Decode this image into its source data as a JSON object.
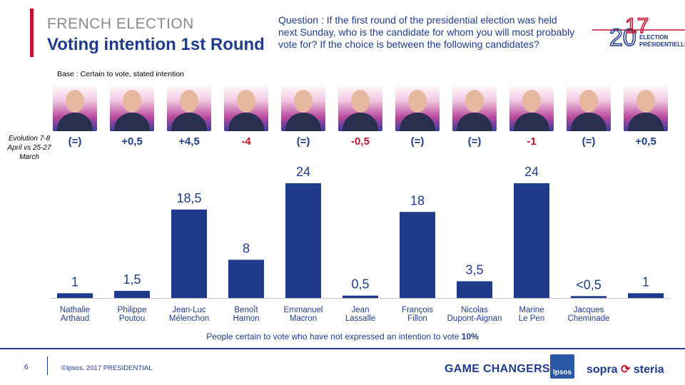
{
  "header": {
    "sup_title": "FRENCH ELECTION",
    "title": "Voting intention 1st Round",
    "question": "Question : If the first round of the presidential election was held next Sunday, who is the candidate for whom you will most probably vote for? If the choice is between the following candidates?",
    "base": "Base : Certain to vote, stated intention"
  },
  "logo": {
    "year_part1": "20",
    "year_part2": "17",
    "line1": "ELECTION",
    "line2": "PRÉSIDENTIELLE"
  },
  "evolution_label": "Evolution 7-8 April vs 25-27 March",
  "colors": {
    "bar": "#1f3c8c",
    "positive": "#1f3c8c",
    "negative": "#c8102e",
    "neutral": "#1f3c8c",
    "accent_red": "#c8102e"
  },
  "chart_data": {
    "type": "bar",
    "title": "Voting intention 1st Round",
    "ylabel": "",
    "ylim": [
      0,
      24
    ],
    "categories": [
      [
        "Nathalie",
        "Arthaud"
      ],
      [
        "Philippe",
        "Poutou"
      ],
      [
        "Jean-Luc",
        "Mélenchon"
      ],
      [
        "Benoît",
        "Hamon"
      ],
      [
        "Emmanuel",
        "Macron"
      ],
      [
        "Jean",
        "Lassalle"
      ],
      [
        "François",
        "Fillon"
      ],
      [
        "Nicolas",
        "Dupont-Aignan"
      ],
      [
        "Marine",
        "Le Pen"
      ],
      [
        "Jacques",
        "Cheminade"
      ],
      [
        "",
        ""
      ]
    ],
    "values": [
      1,
      1.5,
      18.5,
      8,
      24,
      0.5,
      18,
      3.5,
      24,
      0.4,
      1
    ],
    "value_labels": [
      "1",
      "1,5",
      "18,5",
      "8",
      "24",
      "0,5",
      "18",
      "3,5",
      "24",
      "<0,5",
      "1"
    ],
    "evolution": [
      "(=)",
      "+0,5",
      "+4,5",
      "-4",
      "(=)",
      "-0,5",
      "(=)",
      "(=)",
      "-1",
      "(=)",
      "+0,5"
    ],
    "evolution_sign": [
      "neutral",
      "positive",
      "positive",
      "negative",
      "neutral",
      "negative",
      "neutral",
      "neutral",
      "negative",
      "neutral",
      "positive"
    ]
  },
  "footnote": {
    "text": "People certain to vote who have not expressed an intention to vote ",
    "value": "10%"
  },
  "footer": {
    "page_number": "6",
    "copyright": "©Ipsos. 2017 PRESIDENTIAL",
    "game_changers": "GAME CHANGERS",
    "ipsos": "Ipsos",
    "sopra_left": "sopra",
    "sopra_right": "steria"
  }
}
